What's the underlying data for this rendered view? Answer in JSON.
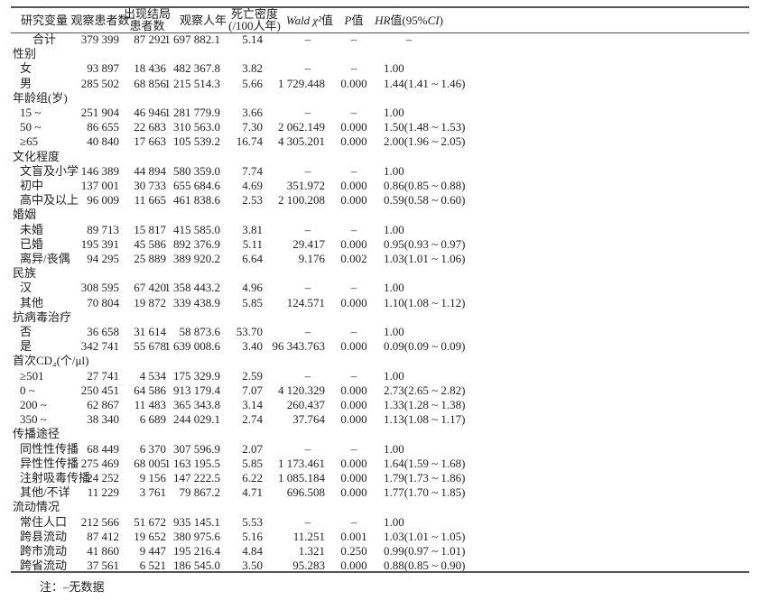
{
  "header": {
    "col0": "研究变量",
    "col1": "观察患者数",
    "col2_line1": "出现结局",
    "col2_line2": "患者数",
    "col3": "观察人年",
    "col4_line1": "死亡密度",
    "col4_line2": "(/100人年)",
    "col5_italic": "Wald χ²",
    "col5_suffix": "值",
    "col6_italic": "P",
    "col6_suffix": "值",
    "col7_italic": "HR",
    "col7_suffix": "值(95%",
    "col7_ci": "CI",
    "col7_end": ")"
  },
  "rows": [
    {
      "type": "total",
      "label": "合计",
      "v": [
        "379 399",
        "87 292",
        "1 697 882.1",
        "5.14",
        "–",
        "–",
        "–"
      ]
    },
    {
      "type": "group",
      "label": "性别",
      "v": []
    },
    {
      "type": "item",
      "label": "女",
      "v": [
        "93 897",
        "18 436",
        "482 367.8",
        "3.82",
        "–",
        "–",
        "1.00"
      ]
    },
    {
      "type": "item",
      "label": "男",
      "v": [
        "285 502",
        "68 856",
        "1 215 514.3",
        "5.66",
        "1 729.448",
        "0.000",
        "1.44(1.41 ~ 1.46)"
      ]
    },
    {
      "type": "group",
      "label": "年龄组(岁)",
      "v": []
    },
    {
      "type": "item",
      "label": "15 ~",
      "v": [
        "251 904",
        "46 946",
        "1 281 779.9",
        "3.66",
        "–",
        "–",
        "1.00"
      ]
    },
    {
      "type": "item",
      "label": "50 ~",
      "v": [
        "86 655",
        "22 683",
        "310 563.0",
        "7.30",
        "2 062.149",
        "0.000",
        "1.50(1.48 ~ 1.53)"
      ]
    },
    {
      "type": "item",
      "label": "≥65",
      "v": [
        "40 840",
        "17 663",
        "105 539.2",
        "16.74",
        "4 305.201",
        "0.000",
        "2.00(1.96 ~ 2.05)"
      ]
    },
    {
      "type": "group",
      "label": "文化程度",
      "v": []
    },
    {
      "type": "item",
      "label": "文盲及小学",
      "v": [
        "146 389",
        "44 894",
        "580 359.0",
        "7.74",
        "–",
        "–",
        "1.00"
      ]
    },
    {
      "type": "item",
      "label": "初中",
      "v": [
        "137 001",
        "30 733",
        "655 684.6",
        "4.69",
        "351.972",
        "0.000",
        "0.86(0.85 ~ 0.88)"
      ]
    },
    {
      "type": "item",
      "label": "高中及以上",
      "v": [
        "96 009",
        "11 665",
        "461 838.6",
        "2.53",
        "2 100.208",
        "0.000",
        "0.59(0.58 ~ 0.60)"
      ]
    },
    {
      "type": "group",
      "label": "婚姻",
      "v": []
    },
    {
      "type": "item",
      "label": "未婚",
      "v": [
        "89 713",
        "15 817",
        "415 585.0",
        "3.81",
        "–",
        "–",
        "1.00"
      ]
    },
    {
      "type": "item",
      "label": "已婚",
      "v": [
        "195 391",
        "45 586",
        "892 376.9",
        "5.11",
        "29.417",
        "0.000",
        "0.95(0.93 ~ 0.97)"
      ]
    },
    {
      "type": "item",
      "label": "离异/丧偶",
      "v": [
        "94 295",
        "25 889",
        "389 920.2",
        "6.64",
        "9.176",
        "0.002",
        "1.03(1.01 ~ 1.06)"
      ]
    },
    {
      "type": "group",
      "label": "民族",
      "v": []
    },
    {
      "type": "item",
      "label": "汉",
      "v": [
        "308 595",
        "67 420",
        "1 358 443.2",
        "4.96",
        "–",
        "–",
        "1.00"
      ]
    },
    {
      "type": "item",
      "label": "其他",
      "v": [
        "70 804",
        "19 872",
        "339 438.9",
        "5.85",
        "124.571",
        "0.000",
        "1.10(1.08 ~ 1.12)"
      ]
    },
    {
      "type": "group",
      "label": "抗病毒治疗",
      "v": []
    },
    {
      "type": "item",
      "label": "否",
      "v": [
        "36 658",
        "31 614",
        "58 873.6",
        "53.70",
        "–",
        "–",
        "1.00"
      ]
    },
    {
      "type": "item",
      "label": "是",
      "v": [
        "342 741",
        "55 678",
        "1 639 008.6",
        "3.40",
        "96 343.763",
        "0.000",
        "0.09(0.09 ~ 0.09)"
      ]
    },
    {
      "type": "group",
      "label": "首次CD₄(个/μl)",
      "v": []
    },
    {
      "type": "item",
      "label": "≥501",
      "v": [
        "27 741",
        "4 534",
        "175 329.9",
        "2.59",
        "–",
        "–",
        "1.00"
      ]
    },
    {
      "type": "item",
      "label": "0 ~",
      "v": [
        "250 451",
        "64 586",
        "913 179.4",
        "7.07",
        "4 120.329",
        "0.000",
        "2.73(2.65 ~ 2.82)"
      ]
    },
    {
      "type": "item",
      "label": "200 ~",
      "v": [
        "62 867",
        "11 483",
        "365 343.8",
        "3.14",
        "260.437",
        "0.000",
        "1.33(1.28 ~ 1.38)"
      ]
    },
    {
      "type": "item",
      "label": "350 ~",
      "v": [
        "38 340",
        "6 689",
        "244 029.1",
        "2.74",
        "37.764",
        "0.000",
        "1.13(1.08 ~ 1.17)"
      ]
    },
    {
      "type": "group",
      "label": "传播途径",
      "v": []
    },
    {
      "type": "item",
      "label": "同性性传播",
      "v": [
        "68 449",
        "6 370",
        "307 596.9",
        "2.07",
        "–",
        "–",
        "1.00"
      ]
    },
    {
      "type": "item",
      "label": "异性性传播",
      "v": [
        "275 469",
        "68 005",
        "1 163 195.5",
        "5.85",
        "1 173.461",
        "0.000",
        "1.64(1.59 ~ 1.68)"
      ]
    },
    {
      "type": "item",
      "label": "注射吸毒传播",
      "v": [
        "24 252",
        "9 156",
        "147 222.5",
        "6.22",
        "1 085.184",
        "0.000",
        "1.79(1.73 ~ 1.86)"
      ]
    },
    {
      "type": "item",
      "label": "其他/不详",
      "v": [
        "11 229",
        "3 761",
        "79 867.2",
        "4.71",
        "696.508",
        "0.000",
        "1.77(1.70 ~ 1.85)"
      ]
    },
    {
      "type": "group",
      "label": "流动情况",
      "v": []
    },
    {
      "type": "item",
      "label": "常住人口",
      "v": [
        "212 566",
        "51 672",
        "935 145.1",
        "5.53",
        "–",
        "–",
        "1.00"
      ]
    },
    {
      "type": "item",
      "label": "跨县流动",
      "v": [
        "87 412",
        "19 652",
        "380 975.6",
        "5.16",
        "11.251",
        "0.001",
        "1.03(1.01 ~ 1.05)"
      ]
    },
    {
      "type": "item",
      "label": "跨市流动",
      "v": [
        "41 860",
        "9 447",
        "195 216.4",
        "4.84",
        "1.321",
        "0.250",
        "0.99(0.97 ~ 1.01)"
      ]
    },
    {
      "type": "item",
      "label": "跨省流动",
      "v": [
        "37 561",
        "6 521",
        "186 545.0",
        "3.50",
        "95.283",
        "0.000",
        "0.88(0.85 ~ 0.90)"
      ]
    }
  ],
  "note": "注：–无数据"
}
